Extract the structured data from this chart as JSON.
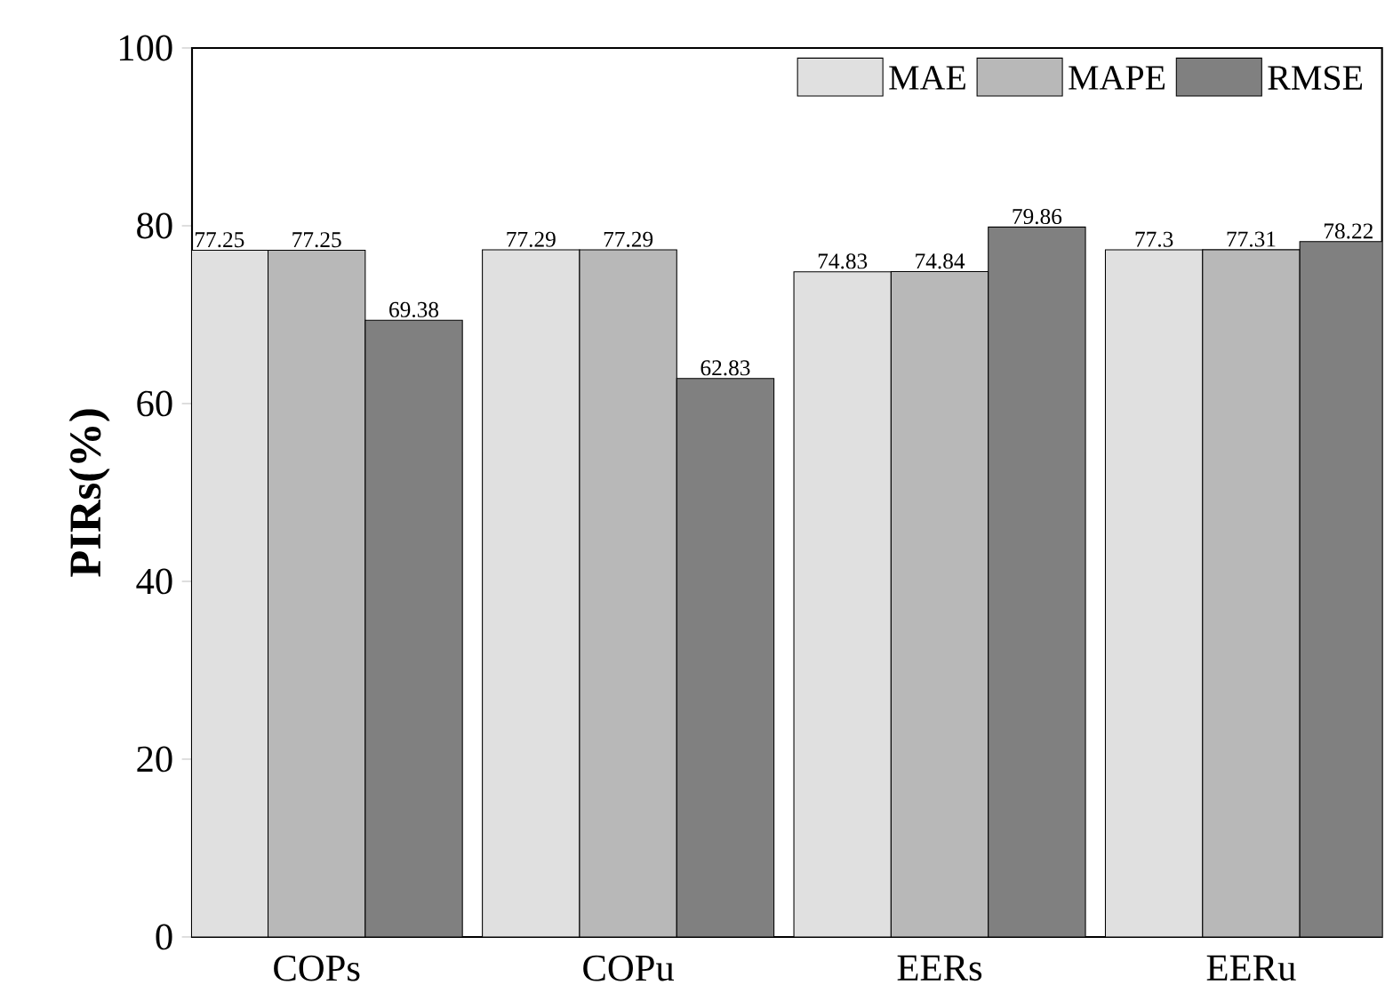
{
  "chart_data": {
    "type": "bar",
    "ylabel": "PIRs(%)",
    "categories": [
      "COPs",
      "COPu",
      "EERs",
      "EERu"
    ],
    "series": [
      {
        "name": "MAE",
        "color": "#e0e0e0",
        "values": [
          77.25,
          77.29,
          74.83,
          77.3
        ]
      },
      {
        "name": "MAPE",
        "color": "#b8b8b8",
        "values": [
          77.25,
          77.29,
          74.84,
          77.31
        ]
      },
      {
        "name": "RMSE",
        "color": "#808080",
        "values": [
          69.38,
          62.83,
          79.86,
          78.22
        ]
      }
    ],
    "ylim": [
      0,
      100
    ],
    "yticks": [
      0,
      20,
      40,
      60,
      80,
      100
    ],
    "data_labels": true,
    "legend": "top right",
    "grid": false
  }
}
